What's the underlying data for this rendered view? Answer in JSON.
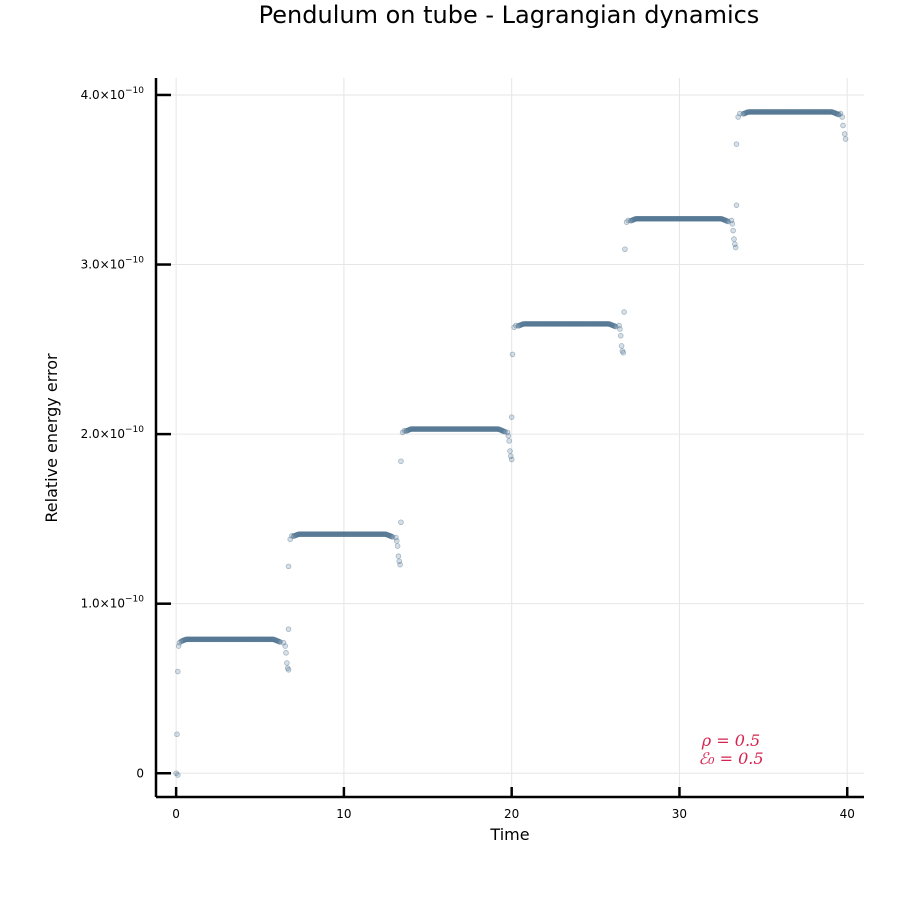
{
  "chart_data": {
    "type": "scatter",
    "title": "Pendulum on tube - Lagrangian dynamics",
    "xlabel": "Time",
    "ylabel": "Relative energy error",
    "xlim": [
      -1.2,
      41.0
    ],
    "ylim": [
      -1.4e-11,
      4.1e-10
    ],
    "x_ticks": [
      {
        "value": 0,
        "label": "0"
      },
      {
        "value": 10,
        "label": "10"
      },
      {
        "value": 20,
        "label": "20"
      },
      {
        "value": 30,
        "label": "30"
      },
      {
        "value": 40,
        "label": "40"
      }
    ],
    "y_ticks": [
      {
        "value": 0,
        "label": "0",
        "exp": ""
      },
      {
        "value": 1e-10,
        "label": "1.0×10",
        "exp": "−10"
      },
      {
        "value": 2e-10,
        "label": "2.0×10",
        "exp": "−10"
      },
      {
        "value": 3e-10,
        "label": "3.0×10",
        "exp": "−10"
      },
      {
        "value": 4e-10,
        "label": "4.0×10",
        "exp": "−10"
      }
    ],
    "grid": true,
    "legend": "none",
    "marker_color": "#4a6f8c",
    "annotation_color": "#d6224e",
    "annotations": [
      "ρ = 0.5",
      "ℰ₀ = 0.5"
    ],
    "plateaus": [
      {
        "start": 0.3,
        "end": 6.2,
        "level": 7.9e-11
      },
      {
        "start": 7.0,
        "end": 12.9,
        "level": 1.41e-10
      },
      {
        "start": 13.7,
        "end": 19.6,
        "level": 2.03e-10
      },
      {
        "start": 20.4,
        "end": 26.2,
        "level": 2.65e-10
      },
      {
        "start": 27.1,
        "end": 32.9,
        "level": 3.27e-10
      },
      {
        "start": 33.8,
        "end": 39.5,
        "level": 3.9e-10
      }
    ],
    "transition_points": [
      [
        0.0,
        0.0
      ],
      [
        0.05,
        2.3e-11
      ],
      [
        0.1,
        -1e-12
      ],
      [
        0.1,
        6e-11
      ],
      [
        0.15,
        7.5e-11
      ],
      [
        0.2,
        7.7e-11
      ],
      [
        6.4,
        7.7e-11
      ],
      [
        6.5,
        7.5e-11
      ],
      [
        6.55,
        7.1e-11
      ],
      [
        6.6,
        6.5e-11
      ],
      [
        6.65,
        6.2e-11
      ],
      [
        6.7,
        6.1e-11
      ],
      [
        6.7,
        8.5e-11
      ],
      [
        6.7,
        1.22e-10
      ],
      [
        6.8,
        1.38e-10
      ],
      [
        6.9,
        1.4e-10
      ],
      [
        13.1,
        1.39e-10
      ],
      [
        13.15,
        1.37e-10
      ],
      [
        13.2,
        1.34e-10
      ],
      [
        13.25,
        1.28e-10
      ],
      [
        13.3,
        1.25e-10
      ],
      [
        13.35,
        1.23e-10
      ],
      [
        13.4,
        1.48e-10
      ],
      [
        13.4,
        1.84e-10
      ],
      [
        13.5,
        2.01e-10
      ],
      [
        13.6,
        2.02e-10
      ],
      [
        19.75,
        2.01e-10
      ],
      [
        19.8,
        1.99e-10
      ],
      [
        19.85,
        1.96e-10
      ],
      [
        19.9,
        1.9e-10
      ],
      [
        19.95,
        1.87e-10
      ],
      [
        20.0,
        1.85e-10
      ],
      [
        20.0,
        2.1e-10
      ],
      [
        20.05,
        2.47e-10
      ],
      [
        20.15,
        2.63e-10
      ],
      [
        20.25,
        2.64e-10
      ],
      [
        26.4,
        2.64e-10
      ],
      [
        26.45,
        2.62e-10
      ],
      [
        26.5,
        2.58e-10
      ],
      [
        26.55,
        2.52e-10
      ],
      [
        26.6,
        2.49e-10
      ],
      [
        26.65,
        2.48e-10
      ],
      [
        26.7,
        2.72e-10
      ],
      [
        26.75,
        3.09e-10
      ],
      [
        26.85,
        3.25e-10
      ],
      [
        26.95,
        3.26e-10
      ],
      [
        33.1,
        3.26e-10
      ],
      [
        33.15,
        3.24e-10
      ],
      [
        33.2,
        3.2e-10
      ],
      [
        33.25,
        3.15e-10
      ],
      [
        33.3,
        3.12e-10
      ],
      [
        33.35,
        3.1e-10
      ],
      [
        33.4,
        3.35e-10
      ],
      [
        33.4,
        3.71e-10
      ],
      [
        33.5,
        3.87e-10
      ],
      [
        33.6,
        3.89e-10
      ],
      [
        39.6,
        3.89e-10
      ],
      [
        39.7,
        3.87e-10
      ],
      [
        39.75,
        3.82e-10
      ],
      [
        39.85,
        3.77e-10
      ],
      [
        39.9,
        3.74e-10
      ]
    ]
  }
}
